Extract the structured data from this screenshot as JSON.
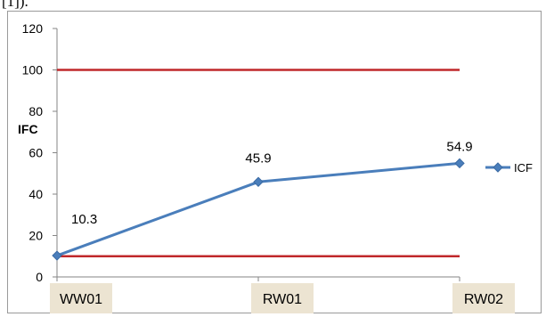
{
  "page_top_text": "[1]).",
  "chart_data": {
    "type": "line",
    "title": "",
    "xlabel": "",
    "ylabel": "IFC",
    "categories": [
      "WW01",
      "RW01",
      "RW02"
    ],
    "series": [
      {
        "name": "ICF",
        "values": [
          10.3,
          45.9,
          54.9
        ],
        "color": "#4a7ebb",
        "data_labels": [
          "10.3",
          "45.9",
          "54.9"
        ]
      }
    ],
    "reference_lines": [
      {
        "value": 100,
        "color": "#c0282b"
      },
      {
        "value": 10,
        "color": "#c0282b"
      }
    ],
    "ylim": [
      0,
      120
    ],
    "yticks": [
      0,
      20,
      40,
      60,
      80,
      100,
      120
    ],
    "grid": false,
    "legend_position": "right",
    "category_box_color": "#ece4d2"
  }
}
